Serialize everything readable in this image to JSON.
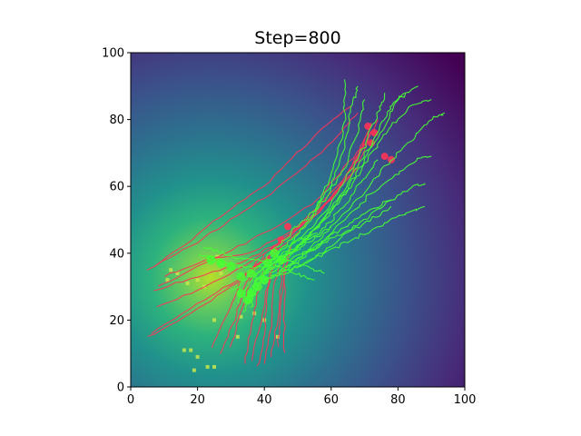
{
  "chart_data": {
    "type": "heatmap",
    "title": "Step=800",
    "xlabel": "",
    "ylabel": "",
    "xlim": [
      0,
      100
    ],
    "ylim": [
      0,
      100
    ],
    "x_ticks": [
      0,
      20,
      40,
      60,
      80,
      100
    ],
    "y_ticks": [
      0,
      20,
      40,
      60,
      80,
      100
    ],
    "grid": false,
    "legend": "none",
    "background_field": {
      "colormap": "viridis",
      "peak": [
        24,
        33
      ],
      "description_values": "smooth scalar field, highest near (24, 33), decaying toward the top-right corner"
    },
    "colors": {
      "red_trails": "#ff3355",
      "green_trails": "#44ff33",
      "resource_squares": "#c8e64c"
    },
    "red_trails": [
      [
        [
          5,
          15
        ],
        [
          18,
          22
        ],
        [
          30,
          30
        ],
        [
          40,
          38
        ],
        [
          50,
          46
        ],
        [
          60,
          56
        ],
        [
          68,
          66
        ],
        [
          72,
          76
        ]
      ],
      [
        [
          6,
          16
        ],
        [
          20,
          25
        ],
        [
          32,
          32
        ],
        [
          42,
          40
        ],
        [
          52,
          50
        ],
        [
          62,
          60
        ],
        [
          70,
          72
        ],
        [
          74,
          80
        ]
      ],
      [
        [
          8,
          24
        ],
        [
          20,
          29
        ],
        [
          34,
          36
        ],
        [
          46,
          44
        ],
        [
          56,
          52
        ],
        [
          64,
          62
        ],
        [
          70,
          74
        ]
      ],
      [
        [
          7,
          29
        ],
        [
          20,
          33
        ],
        [
          33,
          37
        ],
        [
          44,
          43
        ],
        [
          56,
          52
        ],
        [
          66,
          64
        ],
        [
          72,
          78
        ]
      ],
      [
        [
          10,
          33
        ],
        [
          22,
          38
        ],
        [
          36,
          40
        ],
        [
          50,
          48
        ],
        [
          60,
          56
        ],
        [
          68,
          68
        ],
        [
          72,
          79
        ]
      ],
      [
        [
          5,
          35
        ],
        [
          18,
          42
        ],
        [
          30,
          50
        ],
        [
          42,
          58
        ],
        [
          52,
          66
        ],
        [
          62,
          75
        ],
        [
          68,
          82
        ]
      ],
      [
        [
          7,
          36
        ],
        [
          18,
          44
        ],
        [
          28,
          52
        ],
        [
          40,
          60
        ],
        [
          50,
          70
        ],
        [
          58,
          78
        ],
        [
          66,
          84
        ]
      ],
      [
        [
          8,
          30
        ],
        [
          20,
          36
        ],
        [
          32,
          42
        ],
        [
          44,
          48
        ],
        [
          56,
          56
        ],
        [
          64,
          66
        ],
        [
          71,
          74
        ]
      ],
      [
        [
          34,
          7
        ],
        [
          36,
          18
        ],
        [
          38,
          28
        ],
        [
          40,
          36
        ],
        [
          44,
          40
        ]
      ],
      [
        [
          36,
          8
        ],
        [
          39,
          20
        ],
        [
          41,
          30
        ],
        [
          42,
          38
        ]
      ],
      [
        [
          38,
          6
        ],
        [
          40,
          16
        ],
        [
          41,
          28
        ],
        [
          43,
          37
        ]
      ],
      [
        [
          40,
          7
        ],
        [
          42,
          18
        ],
        [
          43,
          30
        ],
        [
          45,
          38
        ]
      ],
      [
        [
          42,
          9
        ],
        [
          44,
          20
        ],
        [
          45,
          30
        ],
        [
          46,
          39
        ]
      ],
      [
        [
          46,
          10
        ],
        [
          46,
          22
        ],
        [
          46,
          32
        ],
        [
          47,
          40
        ]
      ],
      [
        [
          27,
          10
        ],
        [
          31,
          20
        ],
        [
          34,
          30
        ],
        [
          38,
          38
        ]
      ],
      [
        [
          30,
          12
        ],
        [
          33,
          22
        ],
        [
          36,
          32
        ],
        [
          40,
          40
        ]
      ],
      [
        [
          24,
          12
        ],
        [
          29,
          22
        ],
        [
          33,
          32
        ],
        [
          38,
          37
        ]
      ],
      [
        [
          44,
          12
        ],
        [
          45,
          24
        ],
        [
          46,
          34
        ],
        [
          48,
          42
        ]
      ]
    ],
    "green_trails": [
      [
        [
          32,
          25
        ],
        [
          36,
          32
        ],
        [
          42,
          38
        ],
        [
          48,
          44
        ],
        [
          54,
          50
        ],
        [
          58,
          58
        ],
        [
          62,
          70
        ],
        [
          64,
          80
        ],
        [
          64,
          92
        ]
      ],
      [
        [
          30,
          28
        ],
        [
          36,
          34
        ],
        [
          42,
          40
        ],
        [
          48,
          46
        ],
        [
          54,
          52
        ],
        [
          60,
          60
        ],
        [
          64,
          72
        ],
        [
          66,
          84
        ],
        [
          68,
          90
        ]
      ],
      [
        [
          34,
          26
        ],
        [
          40,
          34
        ],
        [
          46,
          40
        ],
        [
          52,
          48
        ],
        [
          58,
          56
        ],
        [
          64,
          66
        ],
        [
          68,
          76
        ],
        [
          70,
          86
        ]
      ],
      [
        [
          36,
          30
        ],
        [
          42,
          36
        ],
        [
          50,
          44
        ],
        [
          58,
          52
        ],
        [
          64,
          62
        ],
        [
          70,
          72
        ],
        [
          74,
          82
        ],
        [
          76,
          88
        ]
      ],
      [
        [
          38,
          32
        ],
        [
          46,
          38
        ],
        [
          54,
          46
        ],
        [
          62,
          56
        ],
        [
          68,
          66
        ],
        [
          74,
          76
        ],
        [
          78,
          84
        ],
        [
          82,
          88
        ]
      ],
      [
        [
          40,
          34
        ],
        [
          48,
          40
        ],
        [
          56,
          48
        ],
        [
          64,
          58
        ],
        [
          70,
          68
        ],
        [
          76,
          78
        ],
        [
          80,
          86
        ],
        [
          86,
          90
        ]
      ],
      [
        [
          42,
          34
        ],
        [
          50,
          42
        ],
        [
          58,
          50
        ],
        [
          66,
          60
        ],
        [
          72,
          70
        ],
        [
          78,
          78
        ],
        [
          84,
          84
        ],
        [
          90,
          86
        ]
      ],
      [
        [
          44,
          34
        ],
        [
          52,
          40
        ],
        [
          60,
          48
        ],
        [
          68,
          56
        ],
        [
          76,
          66
        ],
        [
          84,
          74
        ],
        [
          90,
          80
        ],
        [
          94,
          82
        ]
      ],
      [
        [
          40,
          32
        ],
        [
          48,
          36
        ],
        [
          56,
          42
        ],
        [
          64,
          50
        ],
        [
          72,
          58
        ],
        [
          80,
          64
        ],
        [
          86,
          68
        ],
        [
          90,
          69
        ]
      ],
      [
        [
          38,
          31
        ],
        [
          46,
          34
        ],
        [
          54,
          38
        ],
        [
          62,
          44
        ],
        [
          70,
          50
        ],
        [
          78,
          56
        ],
        [
          84,
          60
        ],
        [
          88,
          61
        ]
      ],
      [
        [
          42,
          33
        ],
        [
          50,
          36
        ],
        [
          58,
          40
        ],
        [
          66,
          44
        ],
        [
          74,
          48
        ],
        [
          82,
          52
        ],
        [
          88,
          54
        ]
      ],
      [
        [
          40,
          35
        ],
        [
          48,
          38
        ],
        [
          56,
          42
        ],
        [
          64,
          46
        ],
        [
          72,
          50
        ],
        [
          78,
          54
        ]
      ],
      [
        [
          20,
          40
        ],
        [
          26,
          38
        ],
        [
          32,
          36
        ],
        [
          38,
          36
        ],
        [
          44,
          36
        ],
        [
          50,
          34
        ],
        [
          55,
          32
        ]
      ],
      [
        [
          22,
          42
        ],
        [
          28,
          40
        ],
        [
          34,
          38
        ],
        [
          40,
          38
        ],
        [
          46,
          38
        ],
        [
          52,
          36
        ],
        [
          58,
          34
        ]
      ],
      [
        [
          34,
          22
        ],
        [
          36,
          28
        ],
        [
          38,
          34
        ],
        [
          42,
          38
        ],
        [
          48,
          40
        ],
        [
          54,
          44
        ],
        [
          60,
          48
        ]
      ],
      [
        [
          36,
          24
        ],
        [
          38,
          30
        ],
        [
          40,
          36
        ],
        [
          44,
          40
        ],
        [
          50,
          44
        ],
        [
          56,
          46
        ]
      ],
      [
        [
          44,
          38
        ],
        [
          50,
          42
        ],
        [
          56,
          46
        ],
        [
          62,
          52
        ],
        [
          68,
          60
        ],
        [
          74,
          68
        ]
      ],
      [
        [
          46,
          36
        ],
        [
          52,
          40
        ],
        [
          58,
          44
        ],
        [
          64,
          48
        ],
        [
          70,
          52
        ],
        [
          78,
          56
        ]
      ]
    ],
    "resource_points": [
      [
        12,
        35
      ],
      [
        14,
        34
      ],
      [
        17,
        31
      ],
      [
        20,
        32
      ],
      [
        27,
        34
      ],
      [
        26,
        39
      ],
      [
        25,
        20
      ],
      [
        32,
        15
      ],
      [
        37,
        22
      ],
      [
        33,
        21
      ],
      [
        40,
        20
      ],
      [
        44,
        15
      ],
      [
        16,
        11
      ],
      [
        18,
        11
      ],
      [
        20,
        9
      ],
      [
        23,
        6
      ],
      [
        25,
        6
      ],
      [
        19,
        5
      ],
      [
        11,
        32
      ],
      [
        22,
        30
      ]
    ],
    "green_blobs": [
      [
        36,
        34
      ],
      [
        33,
        33
      ],
      [
        30,
        36
      ],
      [
        27,
        37
      ],
      [
        38,
        30
      ],
      [
        35,
        26
      ],
      [
        41,
        37
      ],
      [
        43,
        40
      ],
      [
        45,
        38
      ],
      [
        24,
        38
      ],
      [
        33,
        28
      ],
      [
        36,
        28
      ],
      [
        40,
        32
      ]
    ],
    "red_blobs": [
      [
        72,
        73
      ],
      [
        73,
        76
      ],
      [
        71,
        78
      ],
      [
        76,
        69
      ],
      [
        78,
        68
      ],
      [
        41,
        38
      ],
      [
        43,
        41
      ],
      [
        45,
        44
      ],
      [
        47,
        48
      ]
    ]
  }
}
